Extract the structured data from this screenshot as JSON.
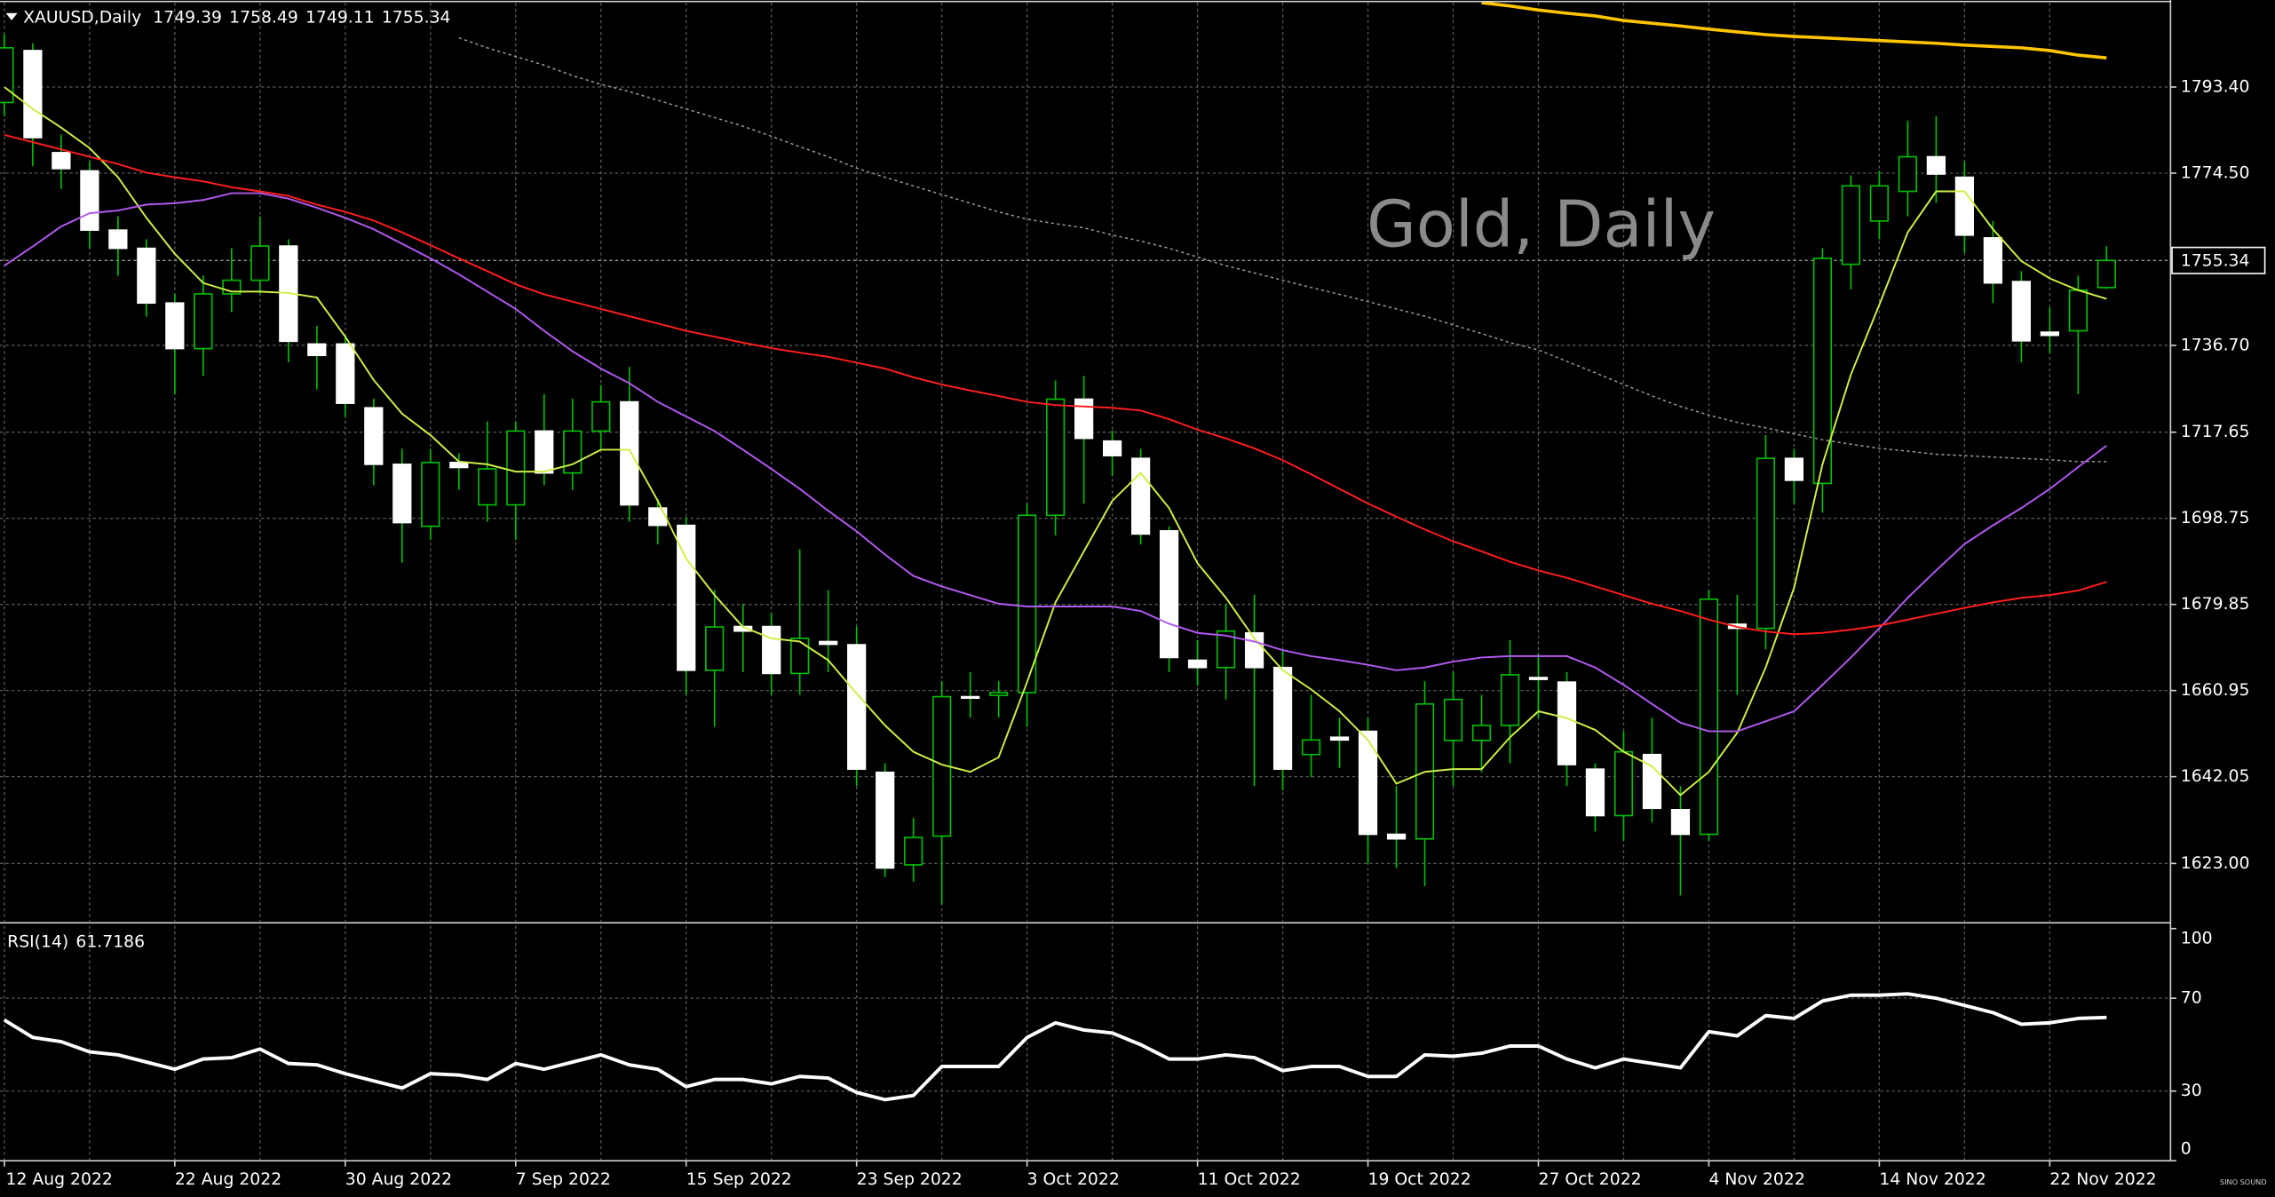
{
  "chart_data": [
    {
      "type": "candlestick",
      "symbol": "XAUUSD,Daily",
      "title": "Gold, Daily",
      "logo": "SINO SOUND",
      "categories": [
        "12 Aug 2022",
        null,
        null,
        null,
        null,
        null,
        "22 Aug 2022",
        null,
        null,
        null,
        null,
        null,
        "30 Aug 2022",
        null,
        null,
        null,
        null,
        null,
        "7 Sep 2022",
        null,
        null,
        null,
        null,
        null,
        "15 Sep 2022",
        null,
        null,
        null,
        null,
        null,
        "23 Sep 2022",
        null,
        null,
        null,
        null,
        null,
        "3 Oct 2022",
        null,
        null,
        null,
        null,
        null,
        "11 Oct 2022",
        null,
        null,
        null,
        null,
        null,
        "19 Oct 2022",
        null,
        null,
        null,
        null,
        null,
        "27 Oct 2022",
        null,
        null,
        null,
        null,
        null,
        "4 Nov 2022",
        null,
        null,
        null,
        null,
        null,
        "14 Nov 2022",
        null,
        null,
        null,
        null,
        null,
        "22 Nov 2022",
        null,
        null
      ],
      "open": [
        1790,
        1801.4,
        1779,
        1775,
        1762,
        1758,
        1746,
        1736,
        1748,
        1751,
        1758.5,
        1737,
        1737,
        1723,
        1710.6,
        1697,
        1711,
        1701.7,
        1701.7,
        1717.9,
        1708.7,
        1717.9,
        1724.3,
        1701,
        1697.2,
        1665.4,
        1675,
        1675,
        1664.7,
        1671.7,
        1671,
        1643,
        1622.7,
        1629,
        1659.6,
        1659.9,
        1660.5,
        1699.4,
        1724.9,
        1715.7,
        1711.9,
        1696,
        1667.6,
        1666,
        1673.6,
        1666,
        1646.9,
        1650.7,
        1652,
        1629.4,
        1628.4,
        1650,
        1650,
        1653.3,
        1663.8,
        1662.8,
        1643.7,
        1633.5,
        1646.9,
        1634.8,
        1629.4,
        1675.5,
        1674.6,
        1711.9,
        1706.4,
        1754.5,
        1764,
        1770.5,
        1778.1,
        1773.6,
        1760.3,
        1750.7,
        1739.6,
        1739.9,
        1749.39
      ],
      "high": [
        1805,
        1803,
        1783,
        1777,
        1765,
        1760,
        1748,
        1752,
        1758,
        1765,
        1760,
        1741,
        1739,
        1725,
        1714,
        1714,
        1713,
        1720,
        1720,
        1726,
        1725,
        1728,
        1732,
        1703,
        1699,
        1683,
        1680,
        1678,
        1692,
        1683,
        1675,
        1645,
        1633,
        1663,
        1665,
        1663,
        1702,
        1729,
        1730,
        1718,
        1714,
        1697,
        1672,
        1680,
        1682,
        1670,
        1660,
        1655,
        1655,
        1640,
        1663,
        1665,
        1660,
        1672,
        1669,
        1665,
        1645,
        1652,
        1655,
        1640,
        1683,
        1682,
        1717,
        1714,
        1758,
        1774,
        1775,
        1786,
        1787,
        1777,
        1764,
        1753,
        1745,
        1752,
        1758.49
      ],
      "low": [
        1787,
        1776,
        1771,
        1758,
        1752,
        1743,
        1726,
        1730,
        1744,
        1748,
        1733,
        1727,
        1721,
        1706,
        1689,
        1694,
        1705,
        1698,
        1694,
        1706,
        1705,
        1714,
        1698,
        1693,
        1660,
        1653,
        1665,
        1660,
        1660,
        1665,
        1640,
        1620,
        1619,
        1614,
        1655,
        1655,
        1653,
        1695,
        1702,
        1708,
        1693,
        1665,
        1662,
        1659,
        1640,
        1639,
        1642,
        1644,
        1623,
        1622,
        1618,
        1640,
        1643,
        1645,
        1655,
        1640,
        1630,
        1628,
        1632,
        1616,
        1628,
        1660,
        1670,
        1702,
        1700,
        1749,
        1760,
        1765,
        1768,
        1757,
        1746,
        1733,
        1735,
        1726,
        1749.11
      ],
      "close": [
        1802,
        1782.3,
        1775.5,
        1762,
        1758,
        1746,
        1736,
        1748,
        1751,
        1758.5,
        1737.6,
        1734.5,
        1724,
        1710.6,
        1697.8,
        1711,
        1709.9,
        1709.6,
        1717.9,
        1708.7,
        1717.9,
        1724.3,
        1701.7,
        1697.2,
        1665.4,
        1674.9,
        1674,
        1664.7,
        1672.4,
        1671.1,
        1643.7,
        1622,
        1628.7,
        1659.6,
        1659.4,
        1660.5,
        1699.4,
        1724.9,
        1716.3,
        1712.5,
        1695.3,
        1668.2,
        1666,
        1674,
        1666,
        1643.7,
        1650.1,
        1650.1,
        1629.4,
        1628.4,
        1658,
        1659,
        1653.3,
        1664.4,
        1663.4,
        1644.7,
        1633.5,
        1647.5,
        1635.1,
        1629.4,
        1681,
        1674.6,
        1711.9,
        1707.1,
        1755.8,
        1771.7,
        1771.7,
        1778.1,
        1774.3,
        1760.9,
        1750.4,
        1737.7,
        1738.9,
        1748.8,
        1755.34
      ],
      "up_color": "#000000",
      "down_color": "#ffffff",
      "wick_color": "#00c000",
      "lines": [
        {
          "color": "#ccf046",
          "values": [
            1793.4,
            1788.6,
            1784.5,
            1780,
            1773.6,
            1764.7,
            1756.8,
            1750.4,
            1748.5,
            1748.5,
            1748.2,
            1747.2,
            1738.6,
            1729.1,
            1721.7,
            1717,
            1711.2,
            1710.6,
            1709,
            1709,
            1710.6,
            1713.8,
            1713.8,
            1702.6,
            1689.9,
            1681.9,
            1674.9,
            1672.4,
            1671.7,
            1667.6,
            1660.3,
            1653.3,
            1647.5,
            1644.7,
            1643.1,
            1646.3,
            1662.8,
            1680.3,
            1691.5,
            1702.6,
            1708.7,
            1701,
            1688.9,
            1681.3,
            1672.4,
            1665.4,
            1661.2,
            1656.4,
            1650.1,
            1640.5,
            1643.1,
            1643.7,
            1643.7,
            1650.7,
            1656.4,
            1654.9,
            1652.3,
            1647.5,
            1644.3,
            1638,
            1643.1,
            1651.7,
            1666,
            1683.5,
            1710.6,
            1730.3,
            1745.6,
            1761.5,
            1770.5,
            1770.5,
            1762.2,
            1755.2,
            1751.4,
            1748.8,
            1746.9
          ]
        },
        {
          "color": "#b259f0",
          "values": [
            1754.2,
            1758.4,
            1762.8,
            1765.7,
            1766.3,
            1767.6,
            1767.9,
            1768.6,
            1770.1,
            1770.1,
            1768.9,
            1766.9,
            1764.7,
            1762.2,
            1759,
            1755.8,
            1752.3,
            1748.5,
            1744.7,
            1739.9,
            1735.4,
            1731.6,
            1728.4,
            1724.3,
            1721.1,
            1717.9,
            1713.8,
            1709.6,
            1705.2,
            1700.4,
            1695.9,
            1690.8,
            1686.1,
            1683.8,
            1681.9,
            1680,
            1679.4,
            1679.4,
            1679.4,
            1679.4,
            1678.4,
            1675.6,
            1673.6,
            1673,
            1671.7,
            1669.8,
            1668.5,
            1667.6,
            1666.6,
            1665.4,
            1666,
            1667.3,
            1668.2,
            1668.5,
            1668.5,
            1668.5,
            1666,
            1662.2,
            1658,
            1653.9,
            1652,
            1652,
            1654.2,
            1656.4,
            1662.2,
            1668.2,
            1674.6,
            1681.3,
            1687.3,
            1693.1,
            1697.2,
            1701,
            1705.2,
            1710,
            1714.7
          ]
        },
        {
          "color": "#ff1e1e",
          "values": [
            1782.9,
            1781.3,
            1779.7,
            1778.1,
            1776.5,
            1774.6,
            1773.6,
            1772.7,
            1771.4,
            1770.5,
            1769.5,
            1767.6,
            1766,
            1764.1,
            1761.5,
            1758.7,
            1755.8,
            1753,
            1750.1,
            1747.9,
            1746.3,
            1744.7,
            1743.1,
            1741.5,
            1739.9,
            1738.6,
            1737.3,
            1736.1,
            1735.1,
            1734.2,
            1732.9,
            1731.6,
            1729.7,
            1728.1,
            1726.8,
            1725.6,
            1724.3,
            1723.6,
            1723.3,
            1723,
            1722.4,
            1720.5,
            1718.2,
            1716.3,
            1714.1,
            1711.5,
            1708.4,
            1705.2,
            1702,
            1699.1,
            1696.3,
            1693.7,
            1691.5,
            1689.2,
            1687.3,
            1685.7,
            1683.8,
            1681.9,
            1680,
            1678.4,
            1676.5,
            1674.9,
            1673.9,
            1673.3,
            1673.6,
            1674.3,
            1675.2,
            1676.5,
            1677.8,
            1679.1,
            1680.3,
            1681.3,
            1681.9,
            1682.9,
            1684.8
          ]
        },
        {
          "color": "#9a9a9a",
          "dashed": true,
          "values": [
            null,
            null,
            null,
            null,
            null,
            null,
            null,
            null,
            null,
            null,
            null,
            null,
            null,
            null,
            null,
            null,
            1804.2,
            1802,
            1800.1,
            1798.2,
            1795.9,
            1794,
            1792.4,
            1790.5,
            1788.6,
            1786.7,
            1784.8,
            1782.6,
            1780.3,
            1778.1,
            1775.6,
            1773.6,
            1771.7,
            1769.8,
            1767.9,
            1766,
            1764.4,
            1763.4,
            1762.5,
            1760.9,
            1759.6,
            1758,
            1756.1,
            1754.2,
            1752.6,
            1751,
            1749.4,
            1747.9,
            1746.3,
            1744.7,
            1743.1,
            1741.2,
            1739.3,
            1737.3,
            1735.7,
            1733.2,
            1730.7,
            1728.1,
            1725.6,
            1723.3,
            1721.4,
            1719.8,
            1718.6,
            1717.3,
            1716,
            1715,
            1714.1,
            1713.5,
            1712.8,
            1712.5,
            1712.2,
            1711.9,
            1711.6,
            1711.2,
            1711.2
          ]
        },
        {
          "color": "#ffc400",
          "values": [
            null,
            null,
            null,
            null,
            null,
            null,
            null,
            null,
            null,
            null,
            null,
            null,
            null,
            null,
            null,
            null,
            null,
            null,
            null,
            null,
            null,
            null,
            null,
            null,
            null,
            null,
            null,
            null,
            null,
            null,
            null,
            null,
            null,
            null,
            null,
            null,
            null,
            null,
            null,
            null,
            null,
            null,
            null,
            null,
            null,
            null,
            null,
            null,
            null,
            null,
            null,
            null,
            1811.9,
            1811.2,
            1810.3,
            1809.6,
            1809,
            1808,
            1807.4,
            1806.8,
            1806.1,
            1805.5,
            1804.9,
            1804.5,
            1804.2,
            1803.9,
            1803.6,
            1803.3,
            1803,
            1802.6,
            1802.3,
            1802,
            1801.4,
            1800.4,
            1799.8
          ]
        }
      ],
      "ylim": [
        1610.3,
        1812.5
      ],
      "yticks": [
        {
          "value": 1623,
          "label": "1623.00"
        },
        1642.05,
        1660.95,
        1679.85,
        1698.75,
        1717.65,
        {
          "value": 1736.7,
          "label": "1736.70"
        },
        {
          "value": 1774.5,
          "label": "1774.50"
        },
        {
          "value": 1793.4,
          "label": "1793.40"
        }
      ],
      "grid": true
    },
    {
      "type": "line",
      "title": "RSI(14)",
      "color": "#ffffff",
      "values": [
        60.6,
        53.1,
        51.3,
        46.9,
        45.6,
        42.5,
        39.4,
        43.8,
        44.4,
        48.1,
        41.9,
        41.3,
        37.5,
        34.4,
        31.3,
        37.5,
        36.9,
        35,
        41.9,
        39.4,
        42.5,
        45.6,
        41.3,
        39.4,
        31.9,
        35,
        35,
        33.1,
        36.3,
        35.6,
        29.4,
        26.3,
        28.1,
        40.6,
        40.6,
        40.6,
        53.1,
        59.4,
        56.3,
        55,
        50,
        43.8,
        43.8,
        45.6,
        44.4,
        38.8,
        40.6,
        40.6,
        36.3,
        36.3,
        45.6,
        45,
        46.3,
        49.4,
        49.4,
        43.8,
        40,
        43.8,
        41.9,
        40,
        55.6,
        53.8,
        62.5,
        61.3,
        68.8,
        71.3,
        71.3,
        71.9,
        70,
        66.9,
        63.8,
        58.8,
        59.4,
        61.3,
        61.7186
      ],
      "ylim": [
        0,
        100
      ],
      "yticks": [
        100,
        70,
        30,
        0
      ],
      "grid": true
    }
  ]
}
